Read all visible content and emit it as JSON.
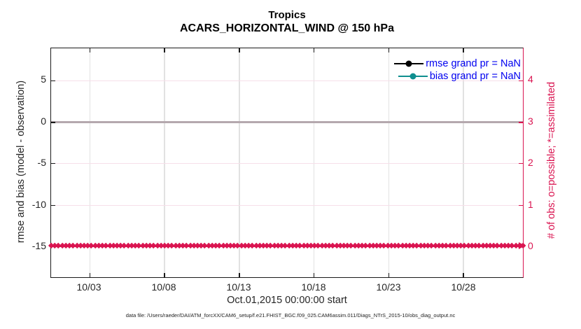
{
  "title": {
    "line1": "Tropics",
    "line2": "ACARS_HORIZONTAL_WIND @ 150 hPa"
  },
  "legend": {
    "items": [
      {
        "label": "rmse grand pr = NaN",
        "color": "#000000",
        "marker": "filled-circle"
      },
      {
        "label": "bias grand pr = NaN",
        "color": "#0f8f8f",
        "marker": "filled-circle"
      }
    ],
    "text_color": "#0000f0",
    "position": "upper-right"
  },
  "axes": {
    "left": {
      "label": "rmse and bias (model - observation)",
      "ticks": [
        "5",
        "0",
        "-5",
        "-10",
        "-15"
      ],
      "color": "#262626"
    },
    "right": {
      "label": "# of obs: o=possible; *=assimilated",
      "ticks": [
        "4",
        "3",
        "2",
        "1",
        "0"
      ],
      "color": "#da1551"
    },
    "x": {
      "label": "Oct.01,2015 00:00:00 start",
      "ticks": [
        "10/03",
        "10/08",
        "10/13",
        "10/18",
        "10/23",
        "10/28"
      ]
    }
  },
  "caption": "data file: /Users/raeder/DAI/ATM_forcXX/CAM6_setup/f.e21.FHIST_BGC.f09_025.CAM6assim.011/Diags_NTrS_2015-10/obs_diag_output.nc",
  "chart_data": {
    "type": "line",
    "title": "Tropics",
    "subtitle": "ACARS_HORIZONTAL_WIND @ 150 hPa",
    "xlabel": "Oct.01,2015 00:00:00 start",
    "x_tick_labels": [
      "10/03",
      "10/08",
      "10/13",
      "10/18",
      "10/23",
      "10/28"
    ],
    "x_range_days": [
      "2015-10-01",
      "2015-10-31"
    ],
    "left_axis": {
      "label": "rmse and bias (model - observation)",
      "tick_values": [
        5,
        0,
        -5,
        -10,
        -15
      ]
    },
    "right_axis": {
      "label": "# of obs: o=possible; *=assimilated",
      "tick_values": [
        4,
        3,
        2,
        1,
        0
      ]
    },
    "series": [
      {
        "name": "rmse grand pr = NaN",
        "axis": "left",
        "color": "#000000",
        "values": "NaN (no curve drawn)"
      },
      {
        "name": "bias grand pr = NaN",
        "axis": "left",
        "color": "#0f8f8f",
        "values": "NaN (no curve drawn)"
      },
      {
        "name": "# of obs possible (o)",
        "axis": "right",
        "color": "#da1551",
        "constant_value": 0
      },
      {
        "name": "# of obs assimilated (*)",
        "axis": "right",
        "color": "#da1551",
        "constant_value": 0
      }
    ],
    "zero_reference_line": 0,
    "grid": true,
    "legend_position": "upper right",
    "obs_band": {
      "marker_count": 130,
      "color": "#da1551",
      "right_axis_value": 0
    }
  },
  "geometry": {
    "x_tick_pct": [
      8.14,
      23.96,
      39.79,
      55.62,
      71.45,
      87.28
    ],
    "y_tick_pct": [
      13.98,
      32.22,
      50.15,
      68.39,
      86.32
    ]
  }
}
